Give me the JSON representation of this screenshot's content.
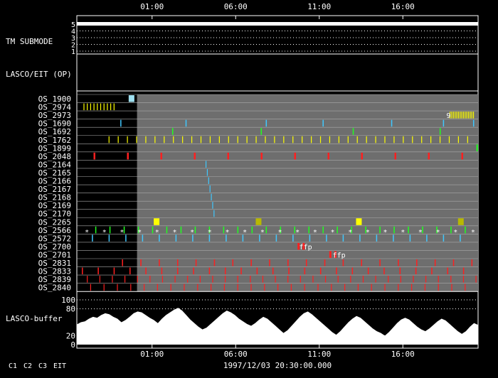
{
  "chart_data": {
    "type": "timeline",
    "title": "",
    "time_ticks": [
      "01:00",
      "06:00",
      "11:00",
      "16:00"
    ],
    "footer_time": "1997/12/03 20:30:00.000",
    "legend": [
      {
        "label": "C1",
        "color": "#ff2020"
      },
      {
        "label": "C2",
        "color": "#20ff20"
      },
      {
        "label": "C3",
        "color": "#ffffff"
      },
      {
        "label": "EIT",
        "color": "#ffffff"
      }
    ],
    "tm_submode": {
      "label": "TM SUBMODE",
      "levels": [
        "5",
        "4",
        "3",
        "2",
        "1"
      ],
      "value": 5
    },
    "lasco_eit_label": "LASCO/EIT (OP)",
    "os_rows": [
      "OS_1900",
      "OS_2974",
      "OS_2973",
      "OS_1690",
      "OS_1692",
      "OS_1762",
      "OS_1899",
      "OS_2048",
      "OS_2164",
      "OS_2165",
      "OS_2166",
      "OS_2167",
      "OS_2168",
      "OS_2169",
      "OS_2170",
      "OS_2265",
      "OS_2566",
      "OS_2572",
      "OS_2700",
      "OS_2701",
      "OS_2831",
      "OS_2833",
      "OS_2839",
      "OS_2840"
    ],
    "annotations": [
      {
        "row": "OS_2973",
        "text": "9",
        "hour": 18.6
      },
      {
        "row": "OS_2700",
        "text": "ffp",
        "hour": 9.8
      },
      {
        "row": "OS_2701",
        "text": "ffp",
        "hour": 11.8
      }
    ],
    "buffer": {
      "label": "LASCO-buffer",
      "y_ticks": [
        "100",
        "80",
        "20",
        "0"
      ],
      "ylim": [
        0,
        100
      ],
      "values": [
        45,
        50,
        52,
        58,
        62,
        60,
        66,
        70,
        68,
        62,
        58,
        50,
        55,
        62,
        70,
        74,
        72,
        66,
        60,
        55,
        48,
        58,
        66,
        72,
        78,
        82,
        76,
        66,
        56,
        48,
        40,
        34,
        38,
        46,
        54,
        62,
        70,
        76,
        72,
        66,
        58,
        52,
        46,
        42,
        48,
        56,
        62,
        58,
        50,
        42,
        34,
        26,
        32,
        42,
        52,
        62,
        70,
        74,
        68,
        60,
        52,
        44,
        36,
        28,
        22,
        30,
        40,
        50,
        58,
        64,
        60,
        52,
        44,
        36,
        30,
        26,
        20,
        28,
        38,
        48,
        56,
        60,
        56,
        48,
        40,
        34,
        30,
        36,
        44,
        52,
        58,
        54,
        46,
        38,
        30,
        24,
        30,
        40,
        48,
        44
      ]
    },
    "xlim_hours": [
      -3.5,
      20.5
    ]
  }
}
